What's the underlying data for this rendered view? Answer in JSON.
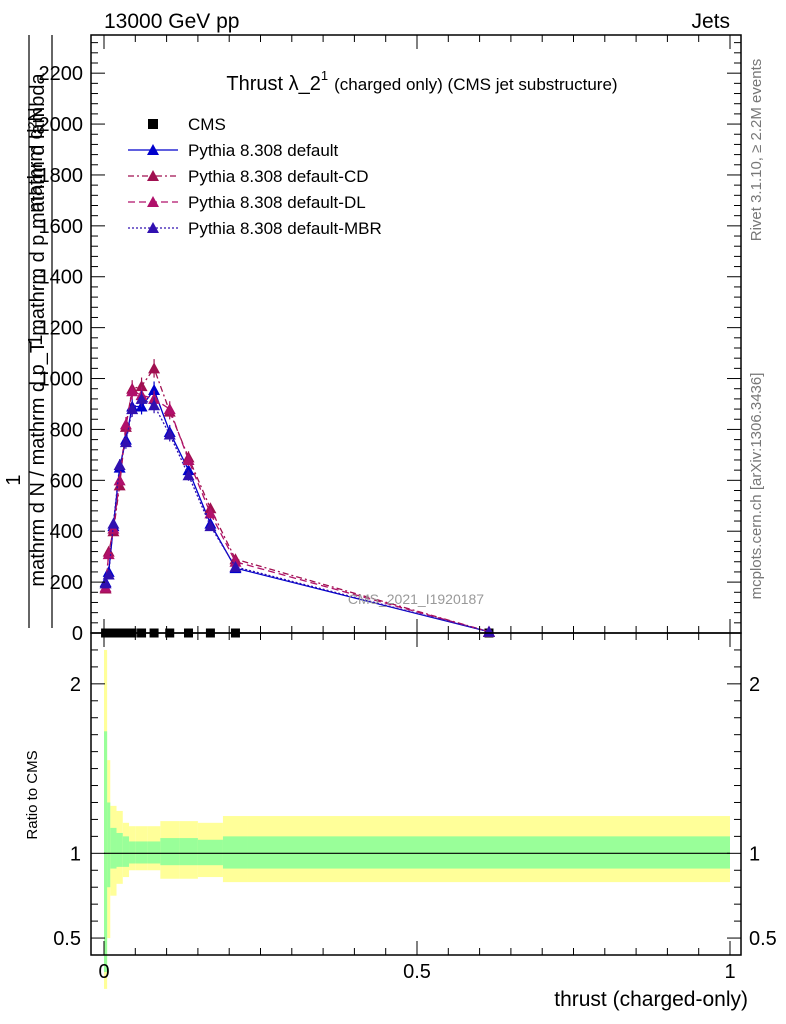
{
  "header": {
    "left": "13000 GeV pp",
    "right": "Jets"
  },
  "side": {
    "rivet": "Rivet 3.1.10, ≥ 2.2M events",
    "mcplots": "mcplots.cern.ch [arXiv:1306.3436]"
  },
  "watermark": "CMS_2021_I1920187",
  "chart_data": [
    {
      "type": "line",
      "title_main": "Thrust λ_2",
      "title_sup": "1",
      "title_rest": "(charged only) (CMS jet substructure)",
      "ylabel_num": "1",
      "ylabel_den": "mathrm d N / mathrm d p_T mathrm d p mathrm d lambda",
      "ylabel_top": "mathrm d²N",
      "xlim": [
        0,
        1
      ],
      "ylim": [
        0,
        2350
      ],
      "yticks": [
        0,
        200,
        400,
        600,
        800,
        1000,
        1200,
        1400,
        1600,
        1800,
        2000,
        2200
      ],
      "legend_position": "top-left",
      "series": [
        {
          "name": "CMS",
          "color": "#000000",
          "marker": "square",
          "dash": "",
          "x": [
            0.0025,
            0.0075,
            0.015,
            0.025,
            0.035,
            0.045,
            0.06,
            0.08,
            0.105,
            0.135,
            0.17,
            0.21,
            0.615
          ],
          "y": [
            0,
            0,
            0,
            0,
            0,
            0,
            0,
            0,
            0,
            0,
            0,
            0,
            0
          ]
        },
        {
          "name": "Pythia 8.308 default",
          "color": "#0000cc",
          "marker": "triangle",
          "dash": "",
          "x": [
            0.0025,
            0.0075,
            0.015,
            0.025,
            0.035,
            0.045,
            0.06,
            0.08,
            0.105,
            0.135,
            0.17,
            0.21,
            0.615
          ],
          "y": [
            200,
            240,
            420,
            650,
            760,
            890,
            890,
            955,
            790,
            640,
            430,
            255,
            5
          ]
        },
        {
          "name": "Pythia 8.308 default-CD",
          "color": "#a01050",
          "marker": "triangle",
          "dash": "6,3,2,3",
          "x": [
            0.0025,
            0.0075,
            0.015,
            0.025,
            0.035,
            0.045,
            0.06,
            0.08,
            0.105,
            0.135,
            0.17,
            0.21,
            0.615
          ],
          "y": [
            175,
            320,
            400,
            580,
            810,
            960,
            970,
            1040,
            870,
            690,
            490,
            290,
            5
          ]
        },
        {
          "name": "Pythia 8.308 default-DL",
          "color": "#b0106a",
          "marker": "triangle",
          "dash": "7,4",
          "x": [
            0.0025,
            0.0075,
            0.015,
            0.025,
            0.035,
            0.045,
            0.06,
            0.08,
            0.105,
            0.135,
            0.17,
            0.21,
            0.615
          ],
          "y": [
            180,
            310,
            410,
            600,
            820,
            950,
            935,
            920,
            880,
            680,
            470,
            280,
            5
          ]
        },
        {
          "name": "Pythia 8.308 default-MBR",
          "color": "#3010b0",
          "marker": "triangle",
          "dash": "2,2",
          "x": [
            0.0025,
            0.0075,
            0.015,
            0.025,
            0.035,
            0.045,
            0.06,
            0.08,
            0.105,
            0.135,
            0.17,
            0.21,
            0.615
          ],
          "y": [
            195,
            230,
            430,
            660,
            750,
            880,
            920,
            895,
            780,
            620,
            420,
            260,
            5
          ]
        }
      ]
    },
    {
      "type": "area",
      "ylabel": "Ratio to CMS",
      "xlabel": "thrust (charged-only)",
      "xlim": [
        0,
        1
      ],
      "ylim": [
        0.4,
        2.3
      ],
      "yticks": [
        0.5,
        1,
        2
      ],
      "ytick_labels": [
        "0.5",
        "1",
        "2"
      ],
      "xtick_labels": [
        "0",
        "0.5",
        "1"
      ],
      "band_colors": {
        "inner": "#99ff99",
        "outer": "#ffff99"
      },
      "bins": [
        0,
        0.005,
        0.01,
        0.02,
        0.03,
        0.04,
        0.05,
        0.07,
        0.09,
        0.12,
        0.15,
        0.19,
        0.23,
        1.0
      ],
      "inner_up": [
        1.72,
        1.3,
        1.15,
        1.12,
        1.1,
        1.07,
        1.07,
        1.07,
        1.09,
        1.09,
        1.08,
        1.1,
        1.1
      ],
      "inner_down": [
        0.3,
        0.8,
        0.91,
        0.92,
        0.92,
        0.94,
        0.94,
        0.94,
        0.93,
        0.93,
        0.93,
        0.91,
        0.91
      ],
      "outer_up": [
        2.2,
        1.55,
        1.28,
        1.25,
        1.18,
        1.16,
        1.16,
        1.16,
        1.19,
        1.19,
        1.18,
        1.22,
        1.22
      ],
      "outer_down": [
        0.2,
        0.5,
        0.75,
        0.82,
        0.86,
        0.9,
        0.9,
        0.9,
        0.85,
        0.85,
        0.86,
        0.83,
        0.83
      ]
    }
  ]
}
